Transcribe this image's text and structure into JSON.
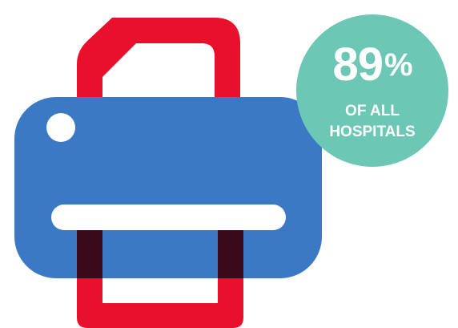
{
  "colors": {
    "paper_outline": "#e8102a",
    "printer_body": "#3b79c5",
    "paper_overlap": "#3a0a1c",
    "slot_and_light": "#ffffff",
    "badge": "#6cc8b5",
    "badge_text": "#ffffff"
  },
  "icons": {
    "printer": "printer-icon"
  },
  "stat": {
    "value": "89",
    "unit": "%",
    "caption": "OF ALL\nHOSPITALS"
  }
}
